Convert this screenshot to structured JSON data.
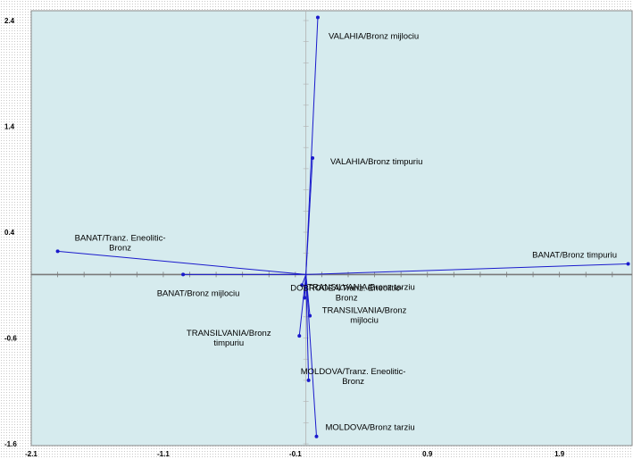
{
  "chart_data": {
    "type": "scatter",
    "xlim": [
      -2.1,
      2.45
    ],
    "ylim": [
      -1.6,
      2.5
    ],
    "x_ticks": [
      -2.1,
      -1.1,
      -0.1,
      0.9,
      1.9
    ],
    "x_tick_labels": [
      "-2.1",
      "-1.1",
      "-0.1",
      "0.9",
      "1.9"
    ],
    "y_ticks": [
      2.4,
      1.4,
      0.4,
      -0.6,
      -1.6
    ],
    "y_tick_labels": [
      "2.4",
      "1.4",
      "0.4",
      "-0.6",
      "-1.6"
    ],
    "origin": [
      -0.02,
      0.0
    ],
    "plot_background": "#d6ebee",
    "point_color": "#1a1acc",
    "points": [
      {
        "label": [
          "VALAHIA/Bronz mijlociu"
        ],
        "x": 0.07,
        "y": 2.43
      },
      {
        "label": [
          "VALAHIA/Bronz timpuriu"
        ],
        "x": 0.03,
        "y": 1.1
      },
      {
        "label": [
          "BANAT/Tranz. Eneolitic-",
          "Bronz"
        ],
        "x": -1.9,
        "y": 0.22
      },
      {
        "label": [
          "BANAT/Bronz timpuriu"
        ],
        "x": 2.42,
        "y": 0.1
      },
      {
        "label": [
          "BANAT/Bronz mijlociu"
        ],
        "x": -0.95,
        "y": 0.0
      },
      {
        "label": [
          "TRANSILVANIA/Bronz tarziu"
        ],
        "x": -0.05,
        "y": -0.1
      },
      {
        "label": [
          "DOBROGEA/Tranz. Eneolitic-",
          "Bronz"
        ],
        "x": -0.03,
        "y": -0.22
      },
      {
        "label": [
          "TRANSILVANIA/Bronz",
          "timpuriu"
        ],
        "x": -0.07,
        "y": -0.58
      },
      {
        "label": [
          "TRANSILVANIA/Bronz",
          "mijlociu"
        ],
        "x": 0.01,
        "y": -0.39
      },
      {
        "label": [
          "MOLDOVA/Tranz. Eneolitic-",
          "Bronz"
        ],
        "x": 0.0,
        "y": -1.0
      },
      {
        "label": [
          "MOLDOVA/Bronz tarziu"
        ],
        "x": 0.06,
        "y": -1.53
      }
    ]
  }
}
